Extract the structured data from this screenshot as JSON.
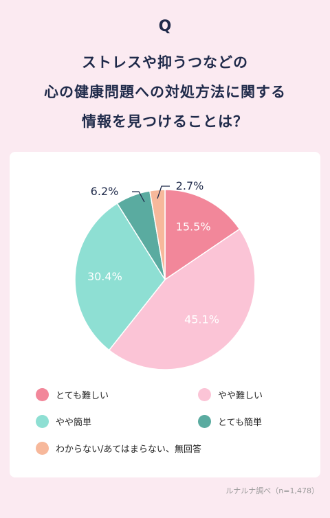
{
  "header": {
    "q_mark": "Q",
    "title_lines": [
      "ストレスや抑うつなどの",
      "心の健康問題への対処方法に関する",
      "情報を見つけることは？"
    ]
  },
  "chart_data": {
    "type": "pie",
    "slices": [
      {
        "label": "とても難しい",
        "value": 15.5,
        "value_label": "15.5%",
        "color": "#f2879a"
      },
      {
        "label": "やや難しい",
        "value": 45.1,
        "value_label": "45.1%",
        "color": "#fbc4d6"
      },
      {
        "label": "やや簡単",
        "value": 30.4,
        "value_label": "30.4%",
        "color": "#8edfd3"
      },
      {
        "label": "とても簡単",
        "value": 6.2,
        "value_label": "6.2%",
        "color": "#5aaba0"
      },
      {
        "label": "わからない/あてはまらない、無回答",
        "value": 2.7,
        "value_label": "2.7%",
        "color": "#f7b89b"
      }
    ],
    "start": "top",
    "direction": "clockwise",
    "legend_position": "bottom"
  },
  "source": "ルナルナ調べ（n=1,478）"
}
